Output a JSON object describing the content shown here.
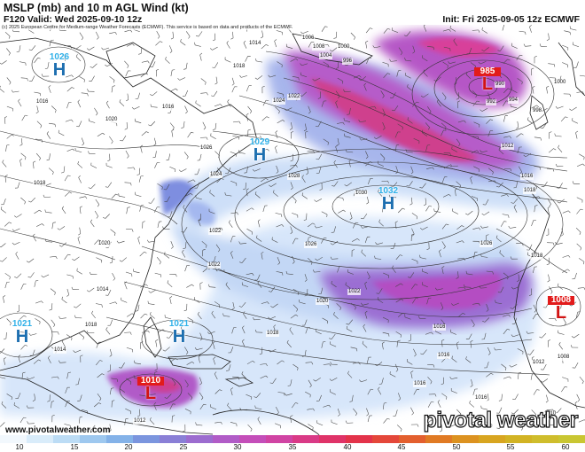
{
  "header": {
    "title": "MSLP (mb) and 10 m AGL Wind (kt)",
    "valid": "F120 Valid: Wed 2025-09-10 12z",
    "init": "Init: Fri 2025-09-05 12z ECMWF"
  },
  "copyright": "(c) 2025 European Centre for Medium-range Weather Forecasts (ECMWF). This service is based on data and products of the ECMWF.",
  "footer": {
    "site": "www.pivotalweather.com",
    "brand": "pivotal weather"
  },
  "pressure_centers": [
    {
      "id": "h1026",
      "type": "H",
      "value": "1026"
    },
    {
      "id": "h1029",
      "type": "H",
      "value": "1029"
    },
    {
      "id": "h1032",
      "type": "H",
      "value": "1032"
    },
    {
      "id": "h1021a",
      "type": "H",
      "value": "1021"
    },
    {
      "id": "h1021b",
      "type": "H",
      "value": "1021"
    },
    {
      "id": "l985",
      "type": "L",
      "value": "985"
    },
    {
      "id": "l1008",
      "type": "L",
      "value": "1008"
    },
    {
      "id": "l1010",
      "type": "L",
      "value": "1010"
    }
  ],
  "isobar_labels": [
    "1014",
    "1016",
    "1018",
    "1020",
    "1022",
    "1024",
    "1026",
    "1028",
    "1030",
    "1012",
    "1010",
    "1008",
    "1006",
    "1004",
    "1000",
    "996",
    "994",
    "992",
    "990",
    "998"
  ],
  "colorbar": {
    "unit": "kt",
    "ticks": [
      "10",
      "15",
      "20",
      "25",
      "30",
      "35",
      "40",
      "45",
      "50",
      "55",
      "60"
    ],
    "colors": [
      "#f2f8fd",
      "#d9ecfa",
      "#bcdcf5",
      "#9ec8ef",
      "#84b2e8",
      "#7b95de",
      "#8a7fd6",
      "#9c6ccf",
      "#b15cc7",
      "#c44eb9",
      "#d044a3",
      "#d93a86",
      "#df3368",
      "#e3334a",
      "#e4473a",
      "#e35f2e",
      "#e07a24",
      "#dc9220",
      "#d8a520",
      "#d2b324",
      "#cfbd2c",
      "#c9c632"
    ]
  },
  "colors": {
    "light_wind": "#c9dcf6",
    "moderate_wind": "#93aee9",
    "strong_wind": "#b04dc4",
    "extreme_wind": "#d02f80",
    "high_center": "#1d6fb0",
    "low_center": "#d21414"
  }
}
